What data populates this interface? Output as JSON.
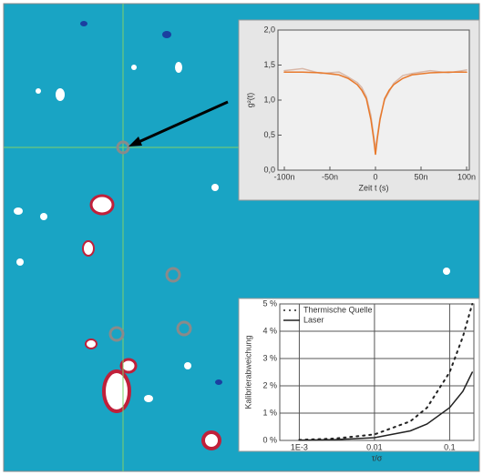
{
  "chart_data": [
    {
      "type": "line",
      "x_label": "Zeit t (s)",
      "y_label": "g²(t)",
      "x": [
        -1e-07,
        -8e-08,
        -6e-08,
        -4e-08,
        -3e-08,
        -2e-08,
        -1.5e-08,
        -1e-08,
        -5e-09,
        -2e-09,
        0,
        2e-09,
        5e-09,
        1e-08,
        1.5e-08,
        2e-08,
        3e-08,
        4e-08,
        6e-08,
        8e-08,
        1e-07
      ],
      "series": [
        {
          "color": "#d9b8a8",
          "linestyle": "solid",
          "values": [
            1.42,
            1.45,
            1.38,
            1.4,
            1.33,
            1.25,
            1.18,
            1.05,
            0.78,
            0.5,
            0.3,
            0.48,
            0.75,
            1.0,
            1.12,
            1.24,
            1.35,
            1.38,
            1.42,
            1.39,
            1.43
          ]
        },
        {
          "color": "#e8782a",
          "linestyle": "solid",
          "values": [
            1.4,
            1.4,
            1.39,
            1.36,
            1.31,
            1.22,
            1.14,
            1.02,
            0.72,
            0.45,
            0.22,
            0.45,
            0.72,
            1.02,
            1.14,
            1.22,
            1.31,
            1.36,
            1.39,
            1.4,
            1.4
          ]
        }
      ],
      "xlim": [
        -1.07e-07,
        1.03e-07
      ],
      "xticks": [
        {
          "value": -1e-07,
          "label": "-100n"
        },
        {
          "value": -5e-08,
          "label": "-50n"
        },
        0,
        {
          "value": 5e-08,
          "label": "50n"
        },
        {
          "value": 1e-07,
          "label": "100n"
        }
      ],
      "ylim": [
        0,
        2
      ],
      "yticks": [
        {
          "value": 0,
          "label": "0,0"
        },
        {
          "value": 0.5,
          "label": "0,5"
        },
        {
          "value": 1,
          "label": "1,0"
        },
        {
          "value": 1.5,
          "label": "1,5"
        },
        {
          "value": 2,
          "label": "2,0"
        }
      ],
      "grid": false,
      "xscale": "linear"
    },
    {
      "type": "line",
      "x_label": "τ/σ",
      "y_label": "Kalibrierabweichung",
      "x": [
        0.001,
        0.003,
        0.01,
        0.03,
        0.05,
        0.1,
        0.15,
        0.2
      ],
      "series": [
        {
          "name": "Thermische Quelle",
          "color": "#222222",
          "linestyle": "dotted",
          "values": [
            0.02,
            0.07,
            0.22,
            0.7,
            1.2,
            2.5,
            3.8,
            5
          ]
        },
        {
          "name": "Laser",
          "color": "#222222",
          "linestyle": "solid",
          "values": [
            0.01,
            0.03,
            0.1,
            0.35,
            0.6,
            1.2,
            1.8,
            2.5
          ]
        }
      ],
      "xlim": [
        0.00055,
        0.21
      ],
      "xticks": [
        {
          "value": 0.001,
          "label": "1E-3"
        },
        0.01,
        0.1
      ],
      "ylim": [
        0,
        5
      ],
      "yticks": [
        {
          "value": 0,
          "label": "0 %"
        },
        {
          "value": 1,
          "label": "1 %"
        },
        {
          "value": 2,
          "label": "2 %"
        },
        {
          "value": 3,
          "label": "3 %"
        },
        {
          "value": 4,
          "label": "4 %"
        },
        {
          "value": 5,
          "label": "5 %"
        }
      ],
      "grid": true,
      "xscale": "log",
      "legend": "top-left"
    }
  ]
}
